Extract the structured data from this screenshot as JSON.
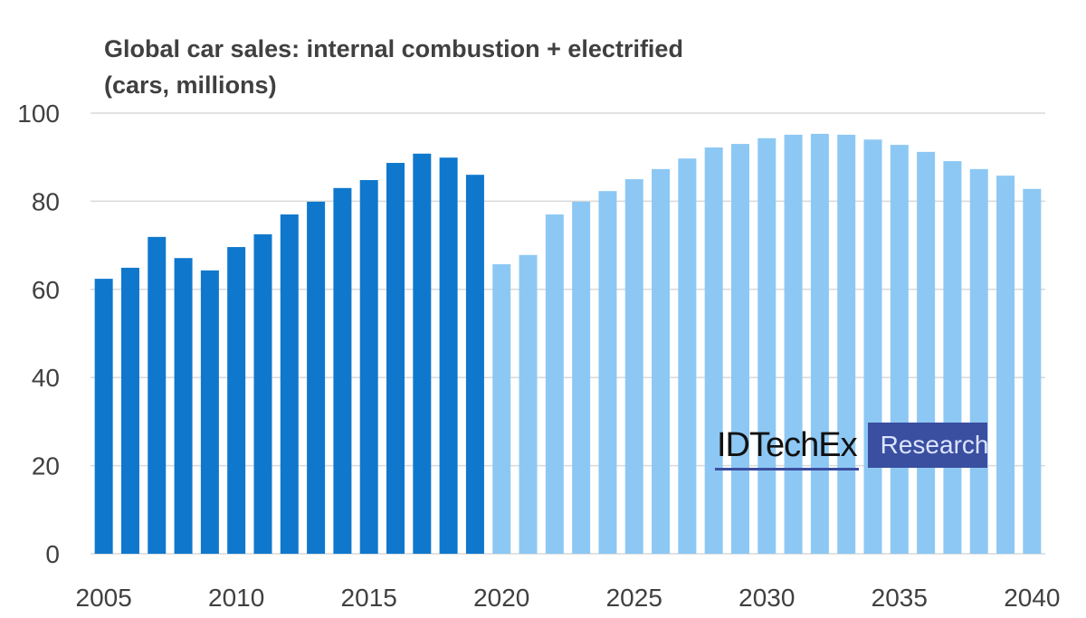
{
  "chart_data": {
    "type": "bar",
    "title": "Global car sales: internal combustion + electrified",
    "subtitle": "(cars, millions)",
    "xlabel": "",
    "ylabel": "",
    "ylim": [
      0,
      100
    ],
    "yticks": [
      "0",
      "20",
      "40",
      "60",
      "80",
      "100"
    ],
    "xticks": [
      "2005",
      "2010",
      "2015",
      "2020",
      "2025",
      "2030",
      "2035",
      "2040"
    ],
    "grid": true,
    "categories": [
      2005,
      2006,
      2007,
      2008,
      2009,
      2010,
      2011,
      2012,
      2013,
      2014,
      2015,
      2016,
      2017,
      2018,
      2019,
      2020,
      2021,
      2022,
      2023,
      2024,
      2025,
      2026,
      2027,
      2028,
      2029,
      2030,
      2031,
      2032,
      2033,
      2034,
      2035,
      2036,
      2037,
      2038,
      2039,
      2040
    ],
    "values": [
      62.4,
      64.9,
      71.9,
      67.1,
      64.3,
      69.6,
      72.5,
      77.0,
      79.9,
      83.0,
      84.8,
      88.7,
      90.8,
      89.9,
      86.0,
      65.7,
      67.8,
      77.0,
      79.9,
      82.3,
      85.0,
      87.3,
      89.7,
      92.2,
      93.0,
      94.3,
      95.1,
      95.3,
      95.1,
      94.0,
      92.8,
      91.2,
      89.1,
      87.3,
      85.8,
      82.8
    ],
    "colors": {
      "historical": "#0f78cd",
      "forecast": "#8dc8f4",
      "grid": "#d9d9d9",
      "text": "#404040"
    },
    "forecast_start": 2020
  },
  "logo": {
    "name": "IDTechEx",
    "badge": "Research"
  }
}
